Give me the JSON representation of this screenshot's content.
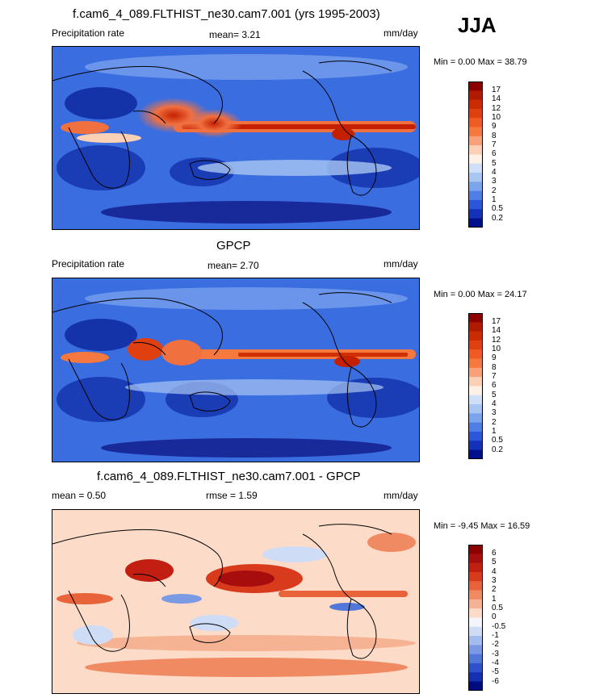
{
  "season": "JJA",
  "panels": [
    {
      "title": "f.cam6_4_089.FLTHIST_ne30.cam7.001 (yrs 1995-2003)",
      "left_label": "Precipitation rate",
      "stat1": "mean=   3.21",
      "stat2": "",
      "units": "mm/day",
      "minmax": "Min =   0.00 Max =  38.79",
      "colorbar_labels": [
        "17",
        "14",
        "12",
        "10",
        "9",
        "8",
        "7",
        "6",
        "5",
        "4",
        "3",
        "2",
        "1",
        "0.5",
        "0.2"
      ],
      "colors": [
        "#8b0000",
        "#b01a00",
        "#cc2a00",
        "#e04010",
        "#ef5a25",
        "#f5793f",
        "#f7a07a",
        "#fbd0b4",
        "#fdf0e6",
        "#cfdff7",
        "#a9c6f3",
        "#7aa4ec",
        "#4e7fe4",
        "#2a57d8",
        "#1332b8",
        "#00108a"
      ]
    },
    {
      "title": "GPCP",
      "left_label": "Precipitation rate",
      "stat1": "mean=   2.70",
      "stat2": "",
      "units": "mm/day",
      "minmax": "Min =   0.00 Max =  24.17",
      "colorbar_labels": [
        "17",
        "14",
        "12",
        "10",
        "9",
        "8",
        "7",
        "6",
        "5",
        "4",
        "3",
        "2",
        "1",
        "0.5",
        "0.2"
      ],
      "colors": [
        "#8b0000",
        "#b01a00",
        "#cc2a00",
        "#e04010",
        "#ef5a25",
        "#f5793f",
        "#f7a07a",
        "#fbd0b4",
        "#fdf0e6",
        "#cfdff7",
        "#a9c6f3",
        "#7aa4ec",
        "#4e7fe4",
        "#2a57d8",
        "#1332b8",
        "#00108a"
      ]
    },
    {
      "title": "f.cam6_4_089.FLTHIST_ne30.cam7.001 - GPCP",
      "left_label": "mean =   0.50",
      "stat1": "rmse =   1.59",
      "stat2": "",
      "units": "mm/day",
      "minmax": "Min =  -9.45 Max =  16.59",
      "colorbar_labels": [
        "6",
        "5",
        "4",
        "3",
        "2",
        "1",
        "0.5",
        "0",
        "-0.5",
        "-1",
        "-2",
        "-3",
        "-4",
        "-5",
        "-6"
      ],
      "colors": [
        "#8b0000",
        "#a80d0d",
        "#c21f12",
        "#d83a1c",
        "#e8623a",
        "#f08a62",
        "#f6b394",
        "#fcdcc8",
        "#f3f5fb",
        "#cfdcf5",
        "#a5bdee",
        "#7a9be4",
        "#5177d9",
        "#2e52cb",
        "#1430b2",
        "#000b80"
      ]
    }
  ],
  "chart_data": [
    {
      "type": "heatmap",
      "title": "f.cam6_4_089.FLTHIST_ne30.cam7.001 (yrs 1995-2003)",
      "variable": "Precipitation rate",
      "units": "mm/day",
      "season": "JJA",
      "mean": 3.21,
      "min": 0.0,
      "max": 38.79,
      "levels": [
        0.2,
        0.5,
        1,
        2,
        3,
        4,
        5,
        6,
        7,
        8,
        9,
        10,
        12,
        14,
        17
      ]
    },
    {
      "type": "heatmap",
      "title": "GPCP",
      "variable": "Precipitation rate",
      "units": "mm/day",
      "mean": 2.7,
      "min": 0.0,
      "max": 24.17,
      "levels": [
        0.2,
        0.5,
        1,
        2,
        3,
        4,
        5,
        6,
        7,
        8,
        9,
        10,
        12,
        14,
        17
      ]
    },
    {
      "type": "heatmap",
      "title": "f.cam6_4_089.FLTHIST_ne30.cam7.001 - GPCP",
      "units": "mm/day",
      "mean": 0.5,
      "rmse": 1.59,
      "min": -9.45,
      "max": 16.59,
      "levels": [
        -6,
        -5,
        -4,
        -3,
        -2,
        -1,
        -0.5,
        0,
        0.5,
        1,
        2,
        3,
        4,
        5,
        6
      ]
    }
  ]
}
